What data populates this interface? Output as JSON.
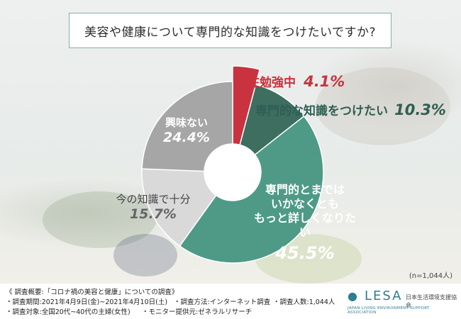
{
  "chart_data": {
    "type": "pie",
    "style": "donut",
    "title": "美容や健康について専門的な知識をつけたいですか?",
    "slices": [
      {
        "label": "現在勉強中",
        "value": 4.1,
        "display": "4.1%",
        "color": "#c8333f"
      },
      {
        "label": "専門的な知識をつけたい",
        "value": 10.3,
        "display": "10.3%",
        "color": "#3d6e60"
      },
      {
        "label": "専門的とまでは\nいかなくとも\nもっと詳しくなりたい",
        "value": 45.5,
        "display": "45.5%",
        "color": "#4e9a86"
      },
      {
        "label": "今の知識で十分",
        "value": 15.7,
        "display": "15.7%",
        "color": "#d9d9d9"
      },
      {
        "label": "興味ない",
        "value": 24.4,
        "display": "24.4%",
        "color": "#a6a6a6"
      }
    ],
    "n_note": "(n=1,044人)"
  },
  "footer": {
    "heading": "《 調査概要:「コロナ禍の美容と健康」についての調査》",
    "period": "・調査期間:2021年4月9日(金)~2021年4月10日(土)",
    "method": "・調査方法:インターネット調査",
    "count": "・調査人数:1,044人",
    "target": "・調査対象:全国20代~40代の主婦(女性)",
    "provider": "・モニター提供元:ゼネラルリサーチ"
  },
  "logo": {
    "name": "LESA",
    "jp": "日本生活環境支援協会",
    "en": "JAPAN LIVING ENVIRONMENT SUPPORT ASSOCIATION"
  }
}
